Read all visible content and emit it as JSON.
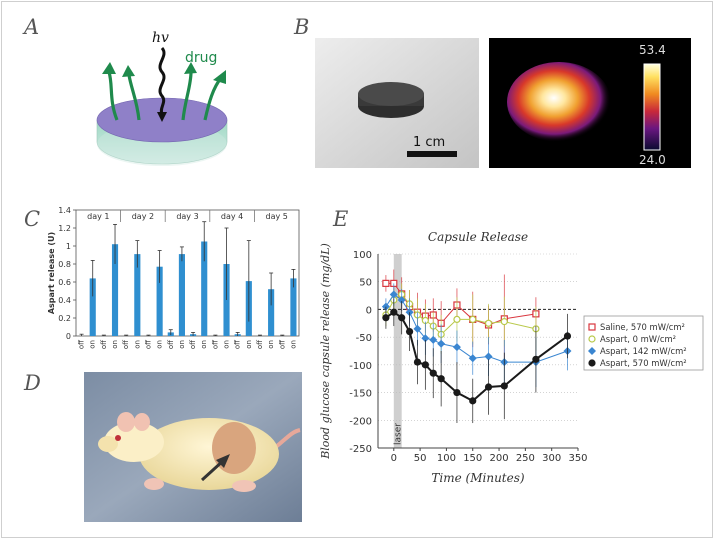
{
  "panels": {
    "a": {
      "letter": "A",
      "hv_label": "hv",
      "drug_label": "drug"
    },
    "b": {
      "letter": "B",
      "scale_label": "1 cm",
      "colorbar_max": "53.4",
      "colorbar_min": "24.0"
    },
    "c": {
      "letter": "C"
    },
    "d": {
      "letter": "D"
    },
    "e": {
      "letter": "E"
    }
  },
  "colors": {
    "bar_blue": "#2f8fd0",
    "saline_red": "#d9363e",
    "aspart0_green": "#b9c94a",
    "aspart142_blue": "#3a86d1",
    "aspart570_black": "#1a1a1a"
  },
  "chart_data": [
    {
      "type": "bar",
      "ylabel": "Aspart release (U)",
      "ylim": [
        0,
        1.4
      ],
      "yticks": [
        "0",
        "0.2",
        "0.4",
        "0.6",
        "0.8",
        "1",
        "1.2",
        "1.4"
      ],
      "group_labels": [
        "day 1",
        "day 2",
        "day 3",
        "day 4",
        "day 5"
      ],
      "categories": [
        "off",
        "on",
        "off",
        "on",
        "off",
        "on",
        "off",
        "on",
        "off",
        "on",
        "off",
        "on",
        "off",
        "on",
        "off",
        "on",
        "off",
        "on",
        "off",
        "on"
      ],
      "values": [
        0.0,
        0.64,
        0.0,
        1.02,
        0.0,
        0.91,
        0.0,
        0.77,
        0.04,
        0.91,
        0.02,
        1.05,
        0.0,
        0.8,
        0.02,
        0.61,
        0.0,
        0.52,
        0.0,
        0.64
      ],
      "errors": [
        0.02,
        0.2,
        0.01,
        0.22,
        0.01,
        0.15,
        0.01,
        0.18,
        0.03,
        0.08,
        0.02,
        0.22,
        0.01,
        0.4,
        0.02,
        0.45,
        0.01,
        0.18,
        0.01,
        0.1
      ]
    },
    {
      "type": "line",
      "title": "Capsule Release",
      "xlabel": "Time (Minutes)",
      "ylabel": "Blood glucose capsule release (mg/dL)",
      "xlim": [
        -30,
        350
      ],
      "ylim": [
        -250,
        100
      ],
      "xticks": [
        "0",
        "50",
        "100",
        "150",
        "200",
        "250",
        "300",
        "350"
      ],
      "yticks": [
        "100",
        "50",
        "0",
        "-50",
        "-100",
        "-150",
        "-200",
        "-250"
      ],
      "annotation": "laser",
      "legend_position": "right",
      "series": [
        {
          "name": "Saline, 570 mW/cm²",
          "marker": "square",
          "x": [
            -15,
            0,
            15,
            30,
            45,
            60,
            75,
            90,
            120,
            150,
            180,
            210,
            270
          ],
          "y": [
            47,
            47,
            28,
            5,
            -5,
            -12,
            -10,
            -25,
            8,
            -18,
            -28,
            -17,
            -8
          ],
          "err": [
            15,
            25,
            30,
            30,
            35,
            30,
            30,
            40,
            30,
            50,
            35,
            80,
            30
          ]
        },
        {
          "name": "Aspart, 0 mW/cm²",
          "marker": "circle-open",
          "x": [
            -15,
            0,
            15,
            30,
            45,
            60,
            75,
            90,
            120,
            150,
            180,
            210,
            270
          ],
          "y": [
            -10,
            17,
            27,
            10,
            -10,
            -20,
            -30,
            -45,
            -18,
            -18,
            -25,
            -22,
            -35
          ],
          "err": [
            20,
            20,
            20,
            25,
            30,
            30,
            25,
            35,
            40,
            45,
            35,
            45,
            40
          ]
        },
        {
          "name": "Aspart, 142 mW/cm²",
          "marker": "diamond",
          "x": [
            -15,
            0,
            15,
            30,
            45,
            60,
            75,
            90,
            120,
            150,
            180,
            210,
            270,
            330
          ],
          "y": [
            5,
            27,
            17,
            -5,
            -35,
            -52,
            -55,
            -62,
            -68,
            -88,
            -85,
            -95,
            -95,
            -75
          ],
          "err": [
            15,
            20,
            20,
            25,
            30,
            30,
            30,
            35,
            30,
            30,
            35,
            40,
            45,
            35
          ]
        },
        {
          "name": "Aspart, 570 mW/cm²",
          "marker": "circle-filled",
          "x": [
            -15,
            0,
            15,
            30,
            45,
            60,
            75,
            90,
            120,
            150,
            180,
            210,
            270,
            330
          ],
          "y": [
            -15,
            -5,
            -15,
            -40,
            -95,
            -100,
            -115,
            -125,
            -150,
            -165,
            -140,
            -138,
            -90,
            -48
          ],
          "err": [
            20,
            25,
            30,
            35,
            40,
            45,
            45,
            50,
            55,
            40,
            50,
            60,
            60,
            40
          ]
        }
      ]
    }
  ]
}
